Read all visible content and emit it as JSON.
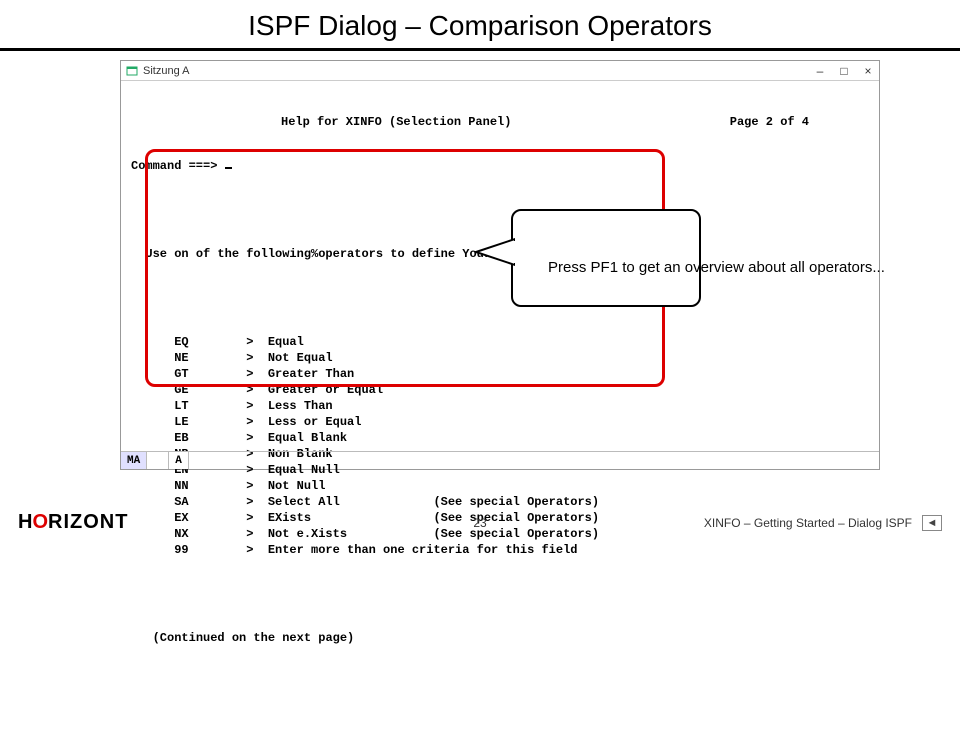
{
  "slide": {
    "title": "ISPF Dialog – Comparison Operators",
    "page_number": "23",
    "footer_right": "XINFO – Getting Started – Dialog ISPF",
    "logo": {
      "h": "H",
      "o": "O",
      "rest": "RIZONT"
    }
  },
  "window": {
    "session_label": "Sitzung A",
    "controls": {
      "min": "–",
      "max": "□",
      "close": "×"
    }
  },
  "terminal": {
    "help_title": "Help for XINFO (Selection Panel)",
    "page_info": "Page 2 of 4",
    "command_label": "Command ===>",
    "instruction": "Use on of the following%operators to define Your selection criteria:",
    "operators": [
      {
        "code": "EQ",
        "desc": "Equal",
        "note": ""
      },
      {
        "code": "NE",
        "desc": "Not Equal",
        "note": ""
      },
      {
        "code": "GT",
        "desc": "Greater Than",
        "note": ""
      },
      {
        "code": "GE",
        "desc": "Greater or Equal",
        "note": ""
      },
      {
        "code": "LT",
        "desc": "Less Than",
        "note": ""
      },
      {
        "code": "LE",
        "desc": "Less or Equal",
        "note": ""
      },
      {
        "code": "EB",
        "desc": "Equal Blank",
        "note": ""
      },
      {
        "code": "NB",
        "desc": "Non Blank",
        "note": ""
      },
      {
        "code": "EN",
        "desc": "Equal Null",
        "note": ""
      },
      {
        "code": "NN",
        "desc": "Not Null",
        "note": ""
      },
      {
        "code": "SA",
        "desc": "Select All",
        "note": "(See special Operators)"
      },
      {
        "code": "EX",
        "desc": "EXists",
        "note": "(See special Operators)"
      },
      {
        "code": "NX",
        "desc": "Not e.Xists",
        "note": "(See special Operators)"
      },
      {
        "code": "99",
        "desc": "Enter more than one criteria for this field",
        "note": ""
      }
    ],
    "continued": "(Continued on the next page)",
    "status_ma": "MA",
    "status_a": "A"
  },
  "callout": {
    "text": "Press PF1 to get an overview about all operators..."
  },
  "colors": {
    "highlight_border": "#d00",
    "status_bg": "#e0e0ff"
  }
}
